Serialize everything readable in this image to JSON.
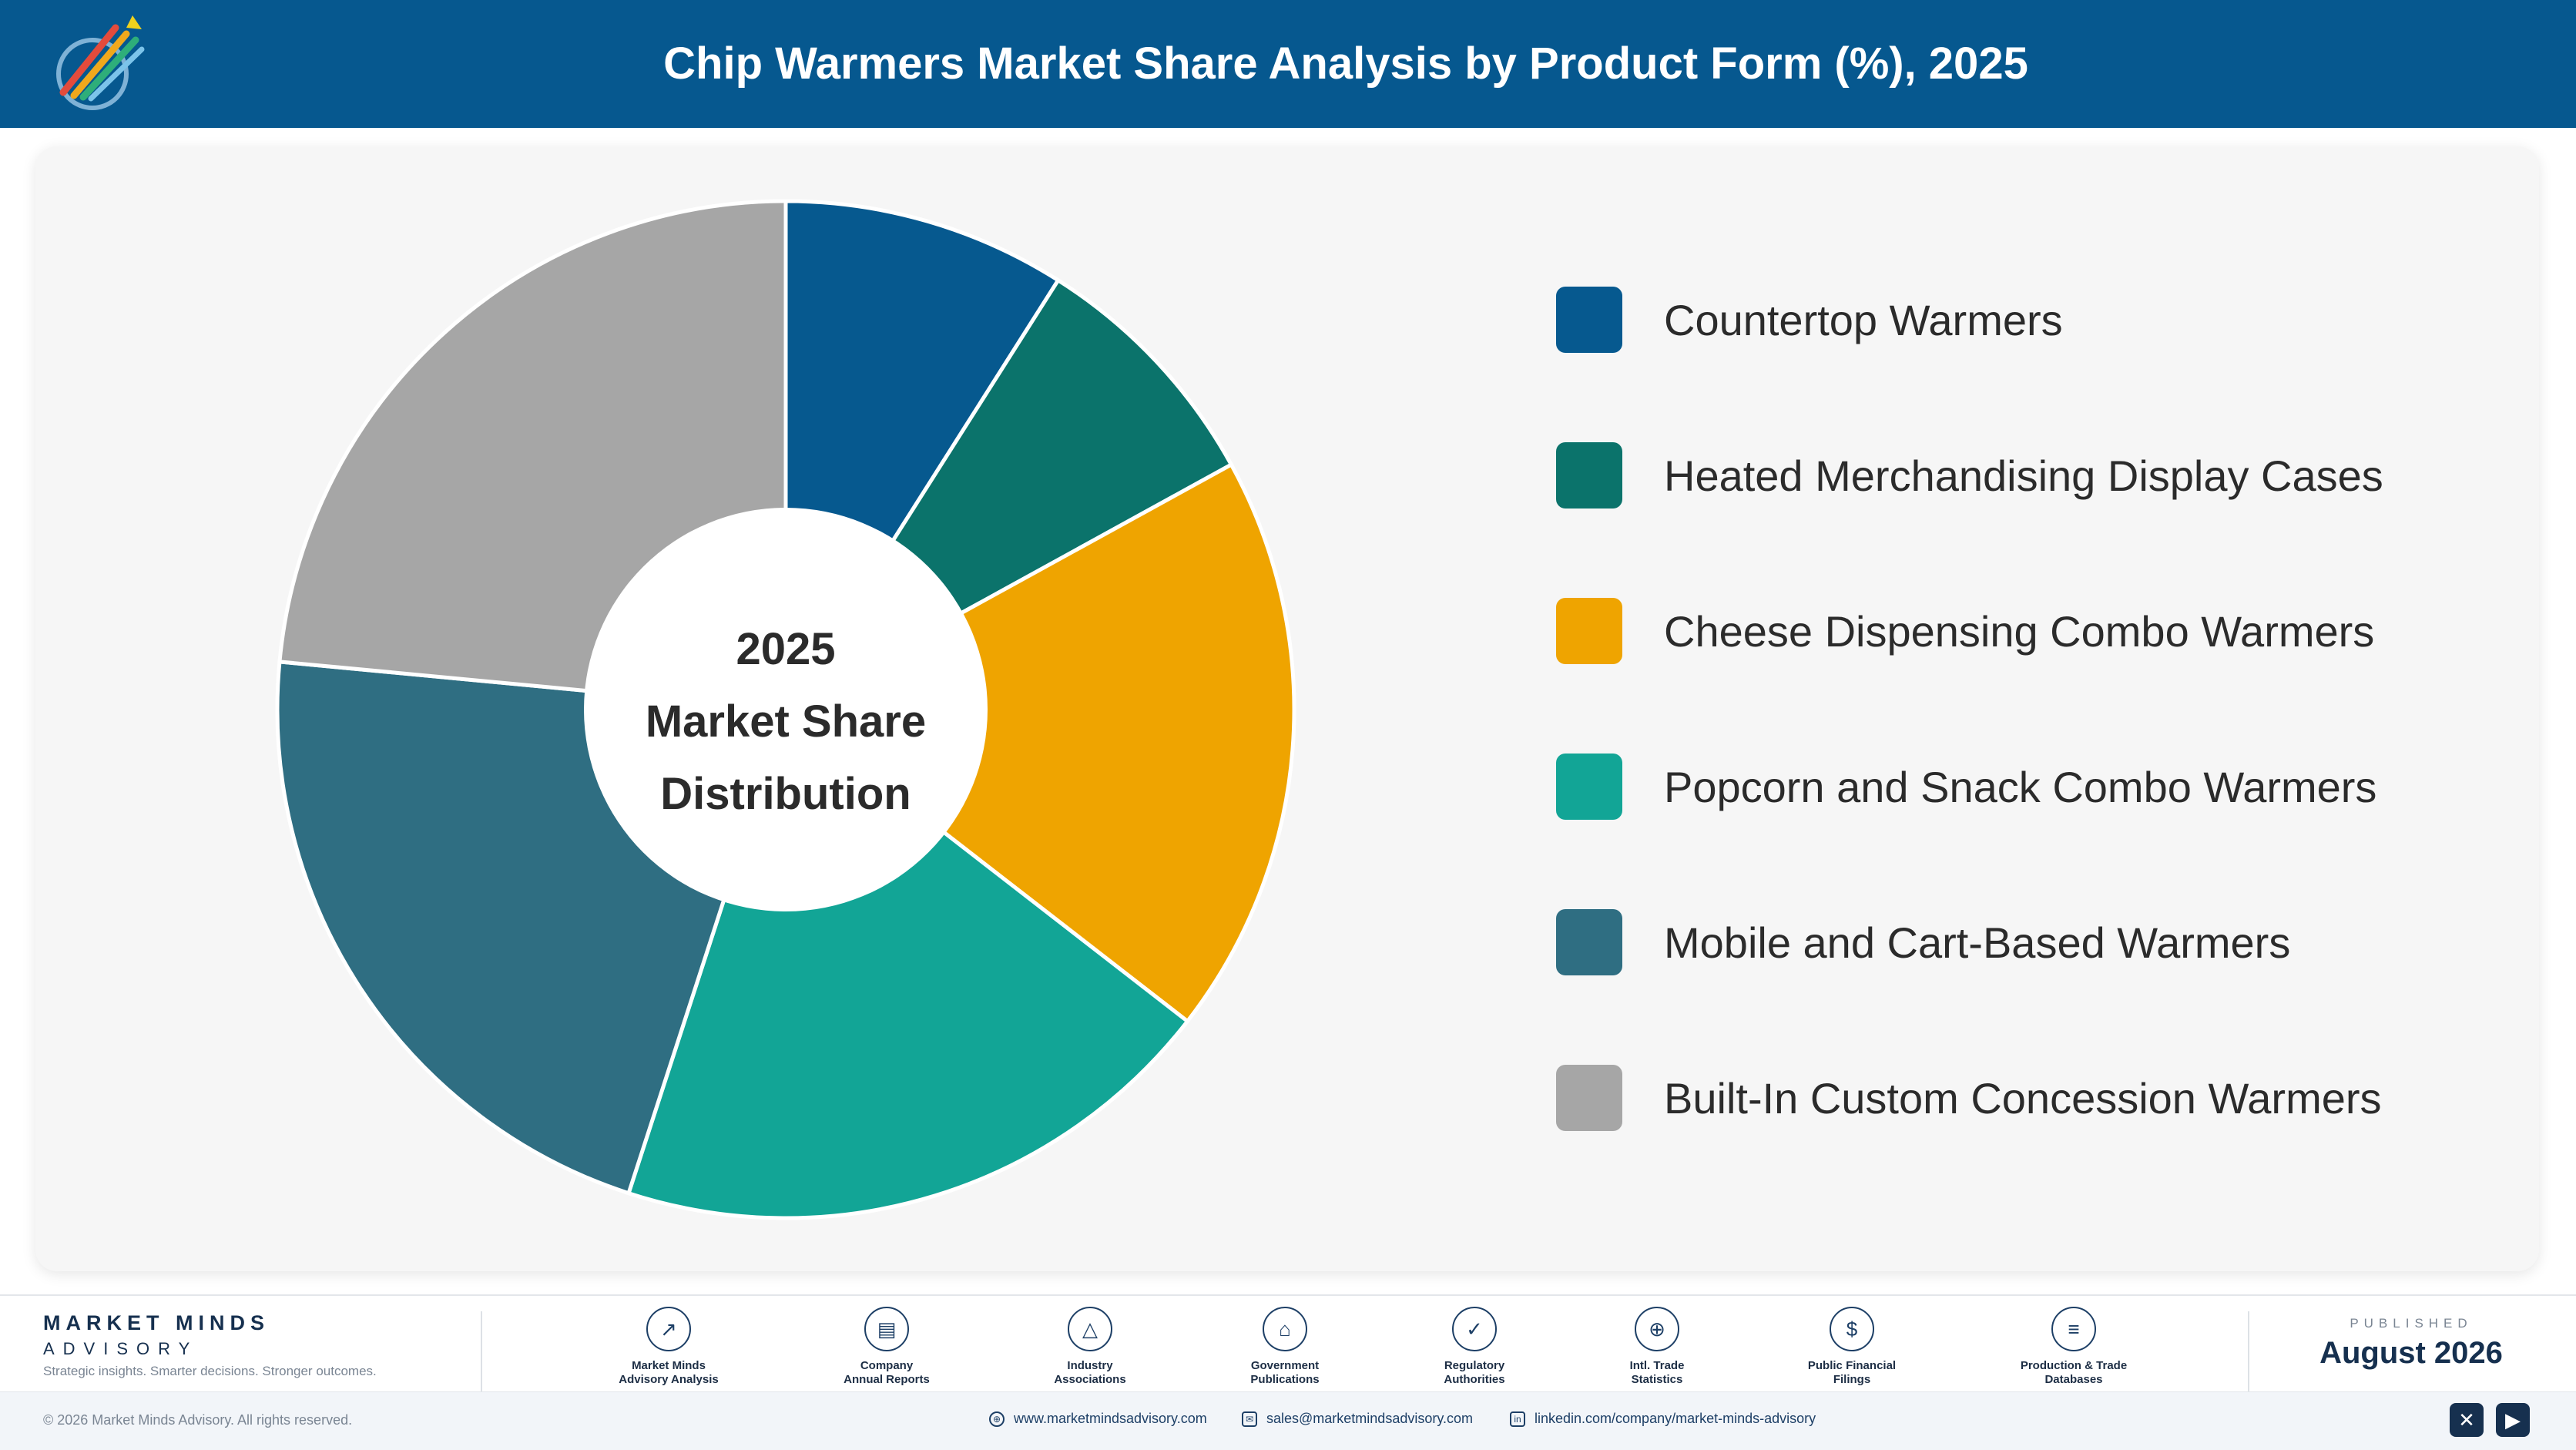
{
  "header": {
    "title": "Chip Warmers Market Share Analysis by Product Form (%), 2025",
    "logo_icon": "market-minds-logo-icon",
    "logo_text": "Market Minds Advisory"
  },
  "chart_data": {
    "type": "pie",
    "donut": true,
    "center_label": [
      "2025",
      "Market Share",
      "Distribution"
    ],
    "categories": [
      "Countertop Warmers",
      "Heated Merchandising Display Cases",
      "Cheese Dispensing Combo Warmers",
      "Popcorn and Snack Combo Warmers",
      "Mobile and Cart-Based Warmers",
      "Built-In Custom Concession Warmers"
    ],
    "values": [
      9.0,
      8.0,
      18.5,
      19.5,
      21.5,
      23.5
    ],
    "colors": [
      "#06598f",
      "#0b736b",
      "#efa400",
      "#12a596",
      "#2f6e82",
      "#a6a6a6"
    ],
    "legend_position": "right"
  },
  "footer": {
    "brand_name": "MARKET MINDS",
    "brand_sub": "ADVISORY",
    "tagline": "Strategic insights. Smarter decisions. Stronger outcomes.",
    "sources": [
      {
        "label": "Market Minds\nAdvisory Analysis",
        "icon": "chart-line-icon"
      },
      {
        "label": "Company\nAnnual Reports",
        "icon": "document-icon"
      },
      {
        "label": "Industry\nAssociations",
        "icon": "network-icon"
      },
      {
        "label": "Government\nPublications",
        "icon": "government-building-icon"
      },
      {
        "label": "Regulatory\nAuthorities",
        "icon": "shield-check-icon"
      },
      {
        "label": "Intl. Trade\nStatistics",
        "icon": "globe-icon"
      },
      {
        "label": "Public Financial\nFilings",
        "icon": "dollar-coin-icon"
      },
      {
        "label": "Production & Trade\nDatabases",
        "icon": "database-icon"
      }
    ],
    "published_label": "PUBLISHED",
    "published_date": "August 2026",
    "copyright": "© 2026 Market Minds Advisory. All rights reserved.",
    "website": "www.marketmindsadvisory.com",
    "email": "sales@marketmindsadvisory.com",
    "linkedin": "linkedin.com/company/market-minds-advisory",
    "social": [
      "x-icon",
      "youtube-icon"
    ]
  }
}
